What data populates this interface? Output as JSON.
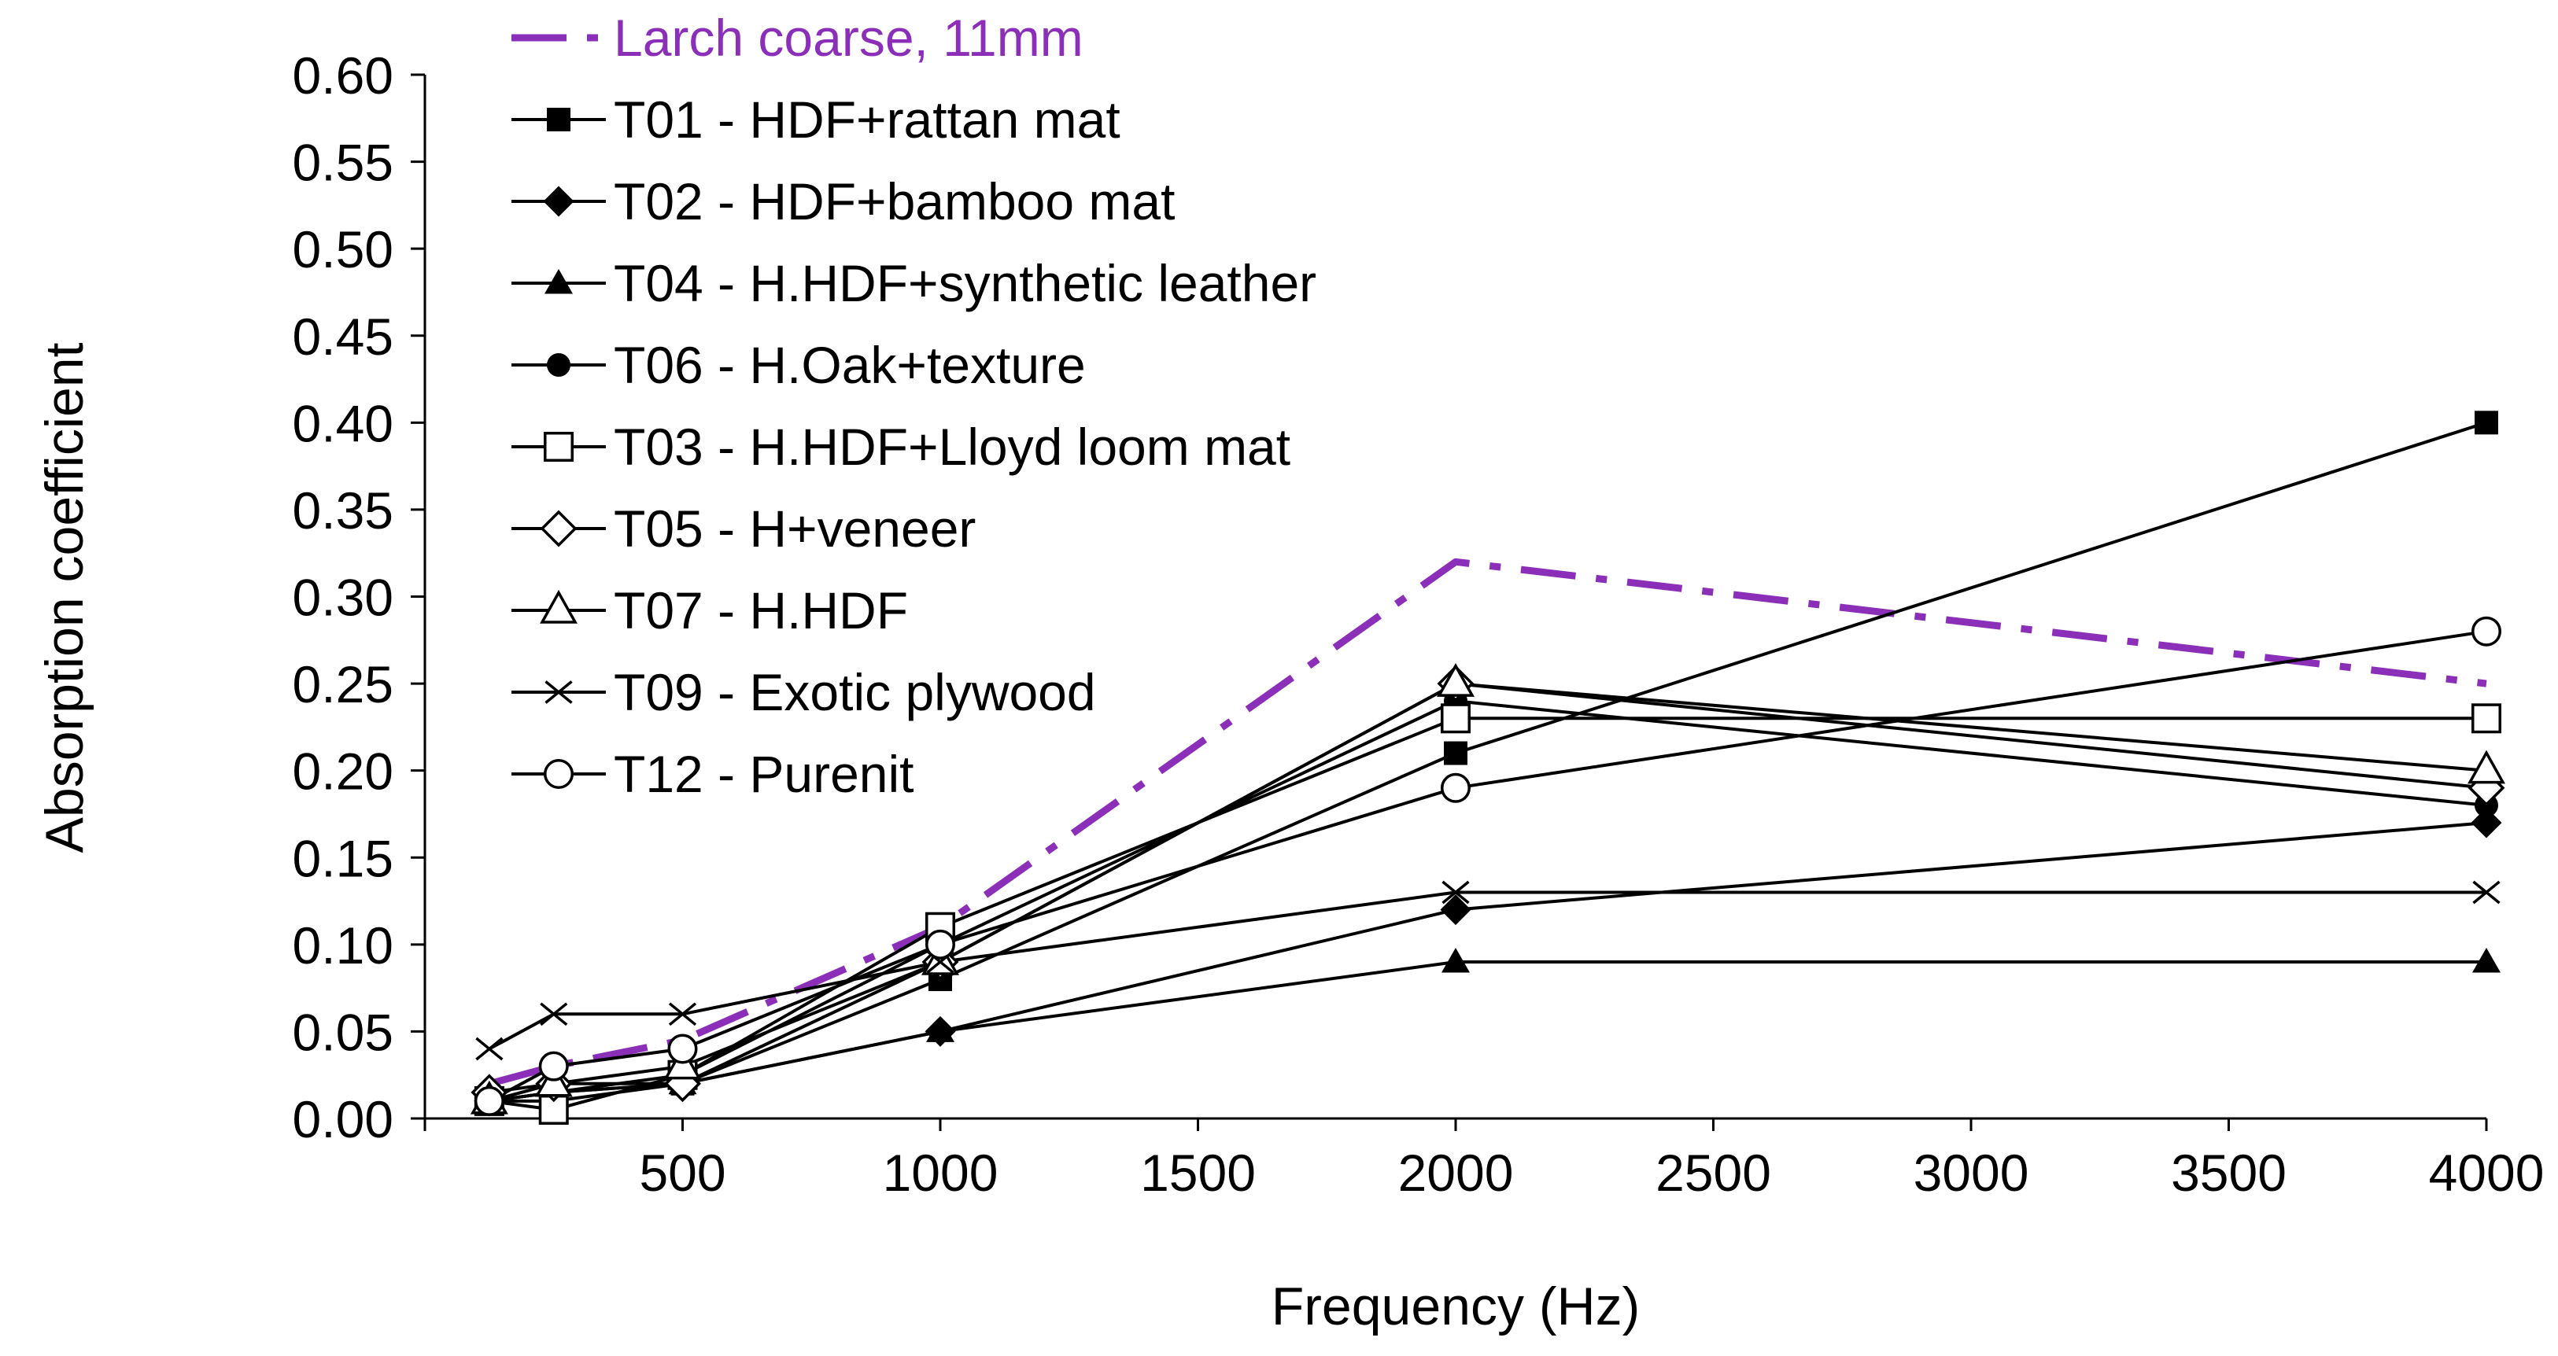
{
  "chart_data": {
    "type": "line",
    "title": "",
    "xlabel": "Frequency (Hz)",
    "ylabel": "Absorption coefficient",
    "x": [
      125,
      250,
      500,
      1000,
      2000,
      4000
    ],
    "xticks": [
      500,
      1000,
      1500,
      2000,
      2500,
      3000,
      3500,
      4000
    ],
    "xlim": [
      0,
      4000
    ],
    "ylim": [
      0,
      0.6
    ],
    "yticks": [
      "0.00",
      "0.05",
      "0.10",
      "0.15",
      "0.20",
      "0.25",
      "0.30",
      "0.35",
      "0.40",
      "0.45",
      "0.50",
      "0.55",
      "0.60"
    ],
    "grid": false,
    "legend_position": "top-left",
    "series": [
      {
        "name": "Larch coarse, 11mm",
        "marker": "none",
        "style": "dashdot",
        "color": "#8B2FB8",
        "values": [
          0.02,
          0.03,
          0.045,
          0.11,
          0.32,
          0.25
        ]
      },
      {
        "name": "T01 - HDF+rattan mat",
        "marker": "square-filled",
        "style": "solid",
        "color": "#000000",
        "values": [
          0.01,
          0.01,
          0.02,
          0.08,
          0.21,
          0.4
        ]
      },
      {
        "name": "T02 - HDF+bamboo mat",
        "marker": "diamond-filled",
        "style": "solid",
        "color": "#000000",
        "values": [
          0.01,
          0.015,
          0.02,
          0.05,
          0.12,
          0.17
        ]
      },
      {
        "name": "T04 - H.HDF+synthetic leather",
        "marker": "triangle-filled",
        "style": "solid",
        "color": "#000000",
        "values": [
          0.01,
          0.015,
          0.02,
          0.05,
          0.09,
          0.09
        ]
      },
      {
        "name": "T06 - H.Oak+texture",
        "marker": "circle-filled",
        "style": "solid",
        "color": "#000000",
        "values": [
          0.01,
          0.015,
          0.025,
          0.1,
          0.24,
          0.18
        ]
      },
      {
        "name": "T03 - H.HDF+Lloyd loom mat",
        "marker": "square-open",
        "style": "solid",
        "color": "#000000",
        "values": [
          0.01,
          0.005,
          0.025,
          0.11,
          0.23,
          0.23
        ]
      },
      {
        "name": "T05 - H+veneer",
        "marker": "diamond-open",
        "style": "solid",
        "color": "#000000",
        "values": [
          0.015,
          0.02,
          0.02,
          0.09,
          0.25,
          0.19
        ]
      },
      {
        "name": "T07 - H.HDF",
        "marker": "triangle-open",
        "style": "solid",
        "color": "#000000",
        "values": [
          0.01,
          0.02,
          0.03,
          0.09,
          0.25,
          0.2
        ]
      },
      {
        "name": "T09 - Exotic plywood",
        "marker": "x",
        "style": "solid",
        "color": "#000000",
        "values": [
          0.04,
          0.06,
          0.06,
          0.09,
          0.13,
          0.13
        ]
      },
      {
        "name": "T12 - Purenit",
        "marker": "circle-open",
        "style": "solid",
        "color": "#000000",
        "values": [
          0.01,
          0.03,
          0.04,
          0.1,
          0.19,
          0.28
        ]
      }
    ]
  }
}
